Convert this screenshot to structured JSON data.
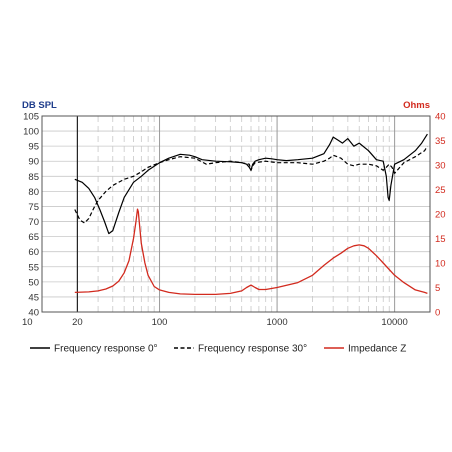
{
  "chart_data": {
    "type": "line",
    "ylabel_left": "DB SPL",
    "ylabel_right": "Ohms",
    "x_scale": "log",
    "xlim": [
      10,
      20000
    ],
    "ylim_left": [
      40,
      105
    ],
    "ylim_right": [
      0,
      40
    ],
    "x_ticks": [
      {
        "value": 10,
        "label": "10"
      },
      {
        "value": 20,
        "label": "20"
      },
      {
        "value": 100,
        "label": "100"
      },
      {
        "value": 1000,
        "label": "1000"
      },
      {
        "value": 10000,
        "label": "10000"
      }
    ],
    "y_ticks_left": [
      105,
      100,
      95,
      90,
      85,
      80,
      75,
      70,
      65,
      60,
      55,
      50,
      45,
      40
    ],
    "y_ticks_right": [
      40,
      35,
      30,
      25,
      20,
      15,
      10,
      5,
      0
    ],
    "grid": true,
    "colors": {
      "left_axis": "#1f3d8c",
      "right_axis": "#d22a1e",
      "impedance": "#d22a1e",
      "response": "#000000"
    },
    "series": [
      {
        "name": "Frequency response 0°",
        "axis": "left",
        "style": "solid",
        "color": "#000000",
        "x": [
          19,
          22,
          25,
          28,
          31,
          34,
          37,
          40,
          45,
          50,
          60,
          70,
          80,
          100,
          120,
          150,
          180,
          200,
          230,
          300,
          400,
          500,
          550,
          580,
          600,
          620,
          650,
          700,
          800,
          900,
          1000,
          1200,
          1500,
          2000,
          2500,
          2800,
          3000,
          3300,
          3600,
          4000,
          4500,
          5000,
          6000,
          7000,
          8000,
          8500,
          8800,
          9000,
          9300,
          10000,
          12000,
          15000,
          17000,
          19000
        ],
        "y": [
          84,
          83,
          81,
          78,
          74,
          70,
          66,
          67,
          73,
          78,
          83,
          85,
          87,
          89.5,
          91,
          92.3,
          92,
          91.5,
          90.5,
          90,
          89.8,
          89.5,
          89,
          88,
          87,
          89,
          90,
          90.5,
          91,
          90.8,
          90.5,
          90.2,
          90.5,
          91,
          92.5,
          95.5,
          98,
          97,
          96,
          97.5,
          95,
          96,
          93.5,
          90.5,
          90,
          85,
          78,
          77,
          82,
          89,
          90.5,
          93.5,
          96,
          99
        ]
      },
      {
        "name": "Frequency response 30°",
        "axis": "left",
        "style": "dashed",
        "color": "#000000",
        "x": [
          19,
          21,
          23,
          25,
          28,
          30,
          35,
          40,
          50,
          60,
          70,
          80,
          100,
          120,
          150,
          200,
          250,
          300,
          400,
          500,
          580,
          600,
          620,
          650,
          800,
          1000,
          1500,
          2000,
          2500,
          2800,
          3000,
          3500,
          4000,
          4500,
          5000,
          6000,
          7000,
          8000,
          8500,
          9000,
          9500,
          10000,
          12000,
          15000,
          18000,
          19000
        ],
        "y": [
          74,
          70.5,
          69.5,
          71,
          75,
          77,
          80,
          82,
          84,
          85,
          86.5,
          88,
          89.5,
          90.5,
          91.5,
          91,
          89,
          89.5,
          90,
          89.5,
          89,
          87,
          88.5,
          89.5,
          90,
          89.5,
          89.5,
          89,
          90,
          91,
          92,
          91,
          89,
          88.5,
          89,
          89,
          88.5,
          87,
          88,
          89,
          88,
          86,
          89.5,
          91.5,
          93.5,
          95
        ]
      },
      {
        "name": "Impedance Z",
        "axis": "right",
        "style": "solid",
        "color": "#d22a1e",
        "x": [
          19,
          25,
          30,
          35,
          40,
          45,
          50,
          55,
          60,
          63,
          65,
          66,
          68,
          70,
          75,
          80,
          90,
          100,
          120,
          150,
          200,
          300,
          400,
          500,
          550,
          600,
          650,
          700,
          800,
          1000,
          1500,
          2000,
          2500,
          3000,
          3500,
          4000,
          4500,
          5000,
          5500,
          6000,
          7000,
          8000,
          10000,
          12000,
          15000,
          18000,
          19000
        ],
        "y": [
          4,
          4.1,
          4.3,
          4.7,
          5.3,
          6.3,
          8,
          10.5,
          15,
          18.5,
          21,
          20.5,
          17,
          14,
          10,
          7.5,
          5.2,
          4.5,
          4,
          3.7,
          3.6,
          3.6,
          3.8,
          4.3,
          5,
          5.5,
          5,
          4.6,
          4.6,
          5,
          6,
          7.5,
          9.5,
          11,
          12,
          13,
          13.5,
          13.7,
          13.5,
          13,
          11.5,
          10,
          7.5,
          6,
          4.5,
          4,
          3.8
        ]
      }
    ]
  },
  "legend": {
    "items": [
      {
        "label": "Frequency response 0°",
        "style": "solid",
        "color": "#000000"
      },
      {
        "label": "Frequency response 30°",
        "style": "dashed",
        "color": "#000000"
      },
      {
        "label": "Impedance Z",
        "style": "solid",
        "color": "#d22a1e"
      }
    ]
  }
}
